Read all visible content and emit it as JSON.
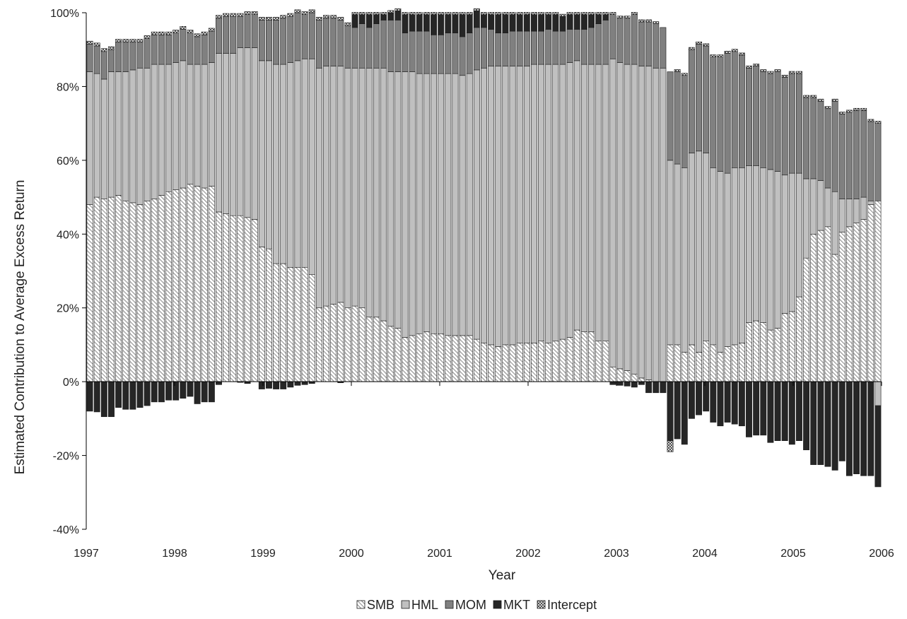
{
  "chart_data": {
    "type": "bar",
    "stacked": true,
    "ylabel": "Estimated Contribution to Average Excess Return",
    "xlabel": "Year",
    "ylim": [
      -0.4,
      1.0
    ],
    "xlim": [
      1997,
      2006
    ],
    "y_ticks": [
      -0.4,
      -0.2,
      0,
      0.2,
      0.4,
      0.6,
      0.8,
      1.0
    ],
    "y_tick_labels": [
      "-40%",
      "-20%",
      "0%",
      "20%",
      "40%",
      "60%",
      "80%",
      "100%"
    ],
    "x_ticks": [
      1997,
      1998,
      1999,
      2000,
      2001,
      2002,
      2003,
      2004,
      2005,
      2006
    ],
    "x_tick_labels": [
      "1997",
      "1998",
      "1999",
      "2000",
      "2001",
      "2002",
      "2003",
      "2004",
      "2005",
      "2006"
    ],
    "legend_position": "bottom",
    "grid": false,
    "series_style": {
      "SMB": {
        "fill": "hatch",
        "color": "#ffffff"
      },
      "HML": {
        "fill": "solid",
        "color": "#c0c0c0"
      },
      "MOM": {
        "fill": "solid",
        "color": "#808080"
      },
      "MKT": {
        "fill": "solid",
        "color": "#262626"
      },
      "Intercept": {
        "fill": "crosshatch",
        "color": "#ffffff"
      }
    },
    "series_names": [
      "SMB",
      "HML",
      "MOM",
      "MKT",
      "Intercept"
    ],
    "series": [
      {
        "name": "SMB",
        "values": [
          0.48,
          0.5,
          0.495,
          0.5,
          0.505,
          0.49,
          0.485,
          0.48,
          0.49,
          0.495,
          0.505,
          0.515,
          0.52,
          0.525,
          0.535,
          0.53,
          0.525,
          0.53,
          0.46,
          0.455,
          0.45,
          0.45,
          0.445,
          0.44,
          0.365,
          0.36,
          0.32,
          0.32,
          0.31,
          0.31,
          0.31,
          0.29,
          0.2,
          0.205,
          0.21,
          0.215,
          0.2,
          0.205,
          0.2,
          0.175,
          0.175,
          0.165,
          0.15,
          0.145,
          0.12,
          0.125,
          0.13,
          0.135,
          0.13,
          0.13,
          0.125,
          0.125,
          0.125,
          0.125,
          0.115,
          0.105,
          0.1,
          0.095,
          0.1,
          0.1,
          0.105,
          0.105,
          0.105,
          0.11,
          0.105,
          0.11,
          0.115,
          0.12,
          0.14,
          0.135,
          0.135,
          0.11,
          0.11,
          0.04,
          0.035,
          0.03,
          0.02,
          0.01,
          0.005,
          0.0,
          0.0,
          0.1,
          0.1,
          0.08,
          0.1,
          0.08,
          0.11,
          0.1,
          0.08,
          0.095,
          0.1,
          0.105,
          0.16,
          0.165,
          0.16,
          0.14,
          0.145,
          0.185,
          0.19,
          0.23,
          0.335,
          0.4,
          0.41,
          0.42,
          0.345,
          0.405,
          0.42,
          0.43,
          0.44,
          0.48,
          0.49
        ]
      },
      {
        "name": "HML",
        "values": [
          0.36,
          0.335,
          0.325,
          0.34,
          0.335,
          0.35,
          0.36,
          0.37,
          0.36,
          0.365,
          0.355,
          0.345,
          0.345,
          0.345,
          0.325,
          0.33,
          0.335,
          0.335,
          0.43,
          0.435,
          0.44,
          0.455,
          0.46,
          0.465,
          0.505,
          0.51,
          0.54,
          0.54,
          0.555,
          0.56,
          0.565,
          0.585,
          0.65,
          0.65,
          0.645,
          0.64,
          0.65,
          0.645,
          0.65,
          0.675,
          0.675,
          0.685,
          0.69,
          0.695,
          0.72,
          0.715,
          0.705,
          0.7,
          0.705,
          0.705,
          0.71,
          0.71,
          0.705,
          0.71,
          0.73,
          0.745,
          0.755,
          0.76,
          0.755,
          0.755,
          0.75,
          0.75,
          0.755,
          0.75,
          0.755,
          0.75,
          0.745,
          0.745,
          0.73,
          0.725,
          0.725,
          0.75,
          0.75,
          0.835,
          0.83,
          0.83,
          0.84,
          0.845,
          0.85,
          0.85,
          0.85,
          0.5,
          0.49,
          0.5,
          0.52,
          0.545,
          0.51,
          0.48,
          0.49,
          0.47,
          0.48,
          0.475,
          0.425,
          0.42,
          0.42,
          0.435,
          0.425,
          0.375,
          0.375,
          0.335,
          0.215,
          0.15,
          0.135,
          0.105,
          0.17,
          0.09,
          0.075,
          0.065,
          0.06,
          0.01,
          -0.065
        ]
      },
      {
        "name": "MOM",
        "values": [
          0.075,
          0.075,
          0.075,
          0.06,
          0.08,
          0.08,
          0.075,
          0.07,
          0.08,
          0.08,
          0.08,
          0.08,
          0.08,
          0.085,
          0.085,
          0.075,
          0.08,
          0.085,
          0.095,
          0.1,
          0.1,
          0.085,
          0.09,
          0.09,
          0.11,
          0.11,
          0.12,
          0.125,
          0.125,
          0.13,
          0.12,
          0.125,
          0.13,
          0.13,
          0.13,
          0.125,
          0.115,
          0.11,
          0.12,
          0.11,
          0.12,
          0.13,
          0.14,
          0.14,
          0.105,
          0.11,
          0.115,
          0.115,
          0.105,
          0.105,
          0.11,
          0.11,
          0.105,
          0.11,
          0.115,
          0.11,
          0.1,
          0.09,
          0.09,
          0.095,
          0.095,
          0.095,
          0.09,
          0.09,
          0.095,
          0.09,
          0.09,
          0.09,
          0.085,
          0.095,
          0.1,
          0.11,
          0.12,
          0.12,
          0.12,
          0.125,
          0.135,
          0.12,
          0.12,
          0.12,
          0.11,
          0.24,
          0.25,
          0.25,
          0.28,
          0.29,
          0.29,
          0.3,
          0.31,
          0.325,
          0.315,
          0.305,
          0.265,
          0.27,
          0.26,
          0.26,
          0.27,
          0.265,
          0.27,
          0.27,
          0.22,
          0.22,
          0.215,
          0.215,
          0.245,
          0.23,
          0.235,
          0.24,
          0.235,
          0.215,
          0.21
        ]
      },
      {
        "name": "MKT",
        "values": [
          -0.08,
          -0.082,
          -0.095,
          -0.095,
          -0.07,
          -0.075,
          -0.075,
          -0.07,
          -0.065,
          -0.055,
          -0.055,
          -0.05,
          -0.05,
          -0.045,
          -0.04,
          -0.06,
          -0.055,
          -0.055,
          -0.008,
          0.0,
          0.0,
          -0.002,
          -0.005,
          0.0,
          -0.02,
          -0.018,
          -0.02,
          -0.02,
          -0.015,
          -0.01,
          -0.008,
          -0.005,
          0.0,
          0.0,
          0.0,
          -0.003,
          0.0,
          0.035,
          0.025,
          0.035,
          0.025,
          0.015,
          0.02,
          0.025,
          0.05,
          0.045,
          0.045,
          0.045,
          0.055,
          0.055,
          0.05,
          0.05,
          0.06,
          0.05,
          0.045,
          0.035,
          0.04,
          0.05,
          0.05,
          0.045,
          0.045,
          0.045,
          0.045,
          0.045,
          0.04,
          0.045,
          0.04,
          0.04,
          0.04,
          0.04,
          0.035,
          0.025,
          0.015,
          -0.008,
          -0.01,
          -0.012,
          -0.015,
          -0.008,
          -0.03,
          -0.03,
          -0.03,
          -0.16,
          -0.155,
          -0.17,
          -0.1,
          -0.09,
          -0.08,
          -0.11,
          -0.12,
          -0.11,
          -0.115,
          -0.12,
          -0.15,
          -0.145,
          -0.145,
          -0.165,
          -0.16,
          -0.16,
          -0.17,
          -0.16,
          -0.185,
          -0.225,
          -0.225,
          -0.23,
          -0.24,
          -0.215,
          -0.255,
          -0.25,
          -0.255,
          -0.255,
          -0.22
        ]
      },
      {
        "name": "Intercept",
        "values": [
          0.008,
          0.008,
          0.008,
          0.008,
          0.008,
          0.008,
          0.008,
          0.008,
          0.008,
          0.008,
          0.008,
          0.008,
          0.008,
          0.008,
          0.008,
          0.008,
          0.008,
          0.008,
          0.008,
          0.008,
          0.008,
          0.008,
          0.008,
          0.008,
          0.008,
          0.008,
          0.008,
          0.008,
          0.008,
          0.008,
          0.008,
          0.008,
          0.008,
          0.008,
          0.008,
          0.008,
          0.008,
          0.006,
          0.006,
          0.006,
          0.006,
          0.006,
          0.006,
          0.006,
          0.006,
          0.006,
          0.006,
          0.006,
          0.006,
          0.006,
          0.006,
          0.006,
          0.006,
          0.006,
          0.006,
          0.006,
          0.006,
          0.006,
          0.006,
          0.006,
          0.006,
          0.006,
          0.006,
          0.006,
          0.006,
          0.006,
          0.006,
          0.006,
          0.006,
          0.006,
          0.006,
          0.006,
          0.006,
          0.006,
          0.006,
          0.006,
          0.006,
          0.006,
          0.006,
          0.006,
          0.0,
          -0.03,
          0.006,
          0.006,
          0.006,
          0.006,
          0.006,
          0.006,
          0.006,
          0.006,
          0.006,
          0.006,
          0.006,
          0.006,
          0.006,
          0.006,
          0.006,
          0.006,
          0.006,
          0.006,
          0.006,
          0.006,
          0.006,
          0.006,
          0.006,
          0.006,
          0.006,
          0.006,
          0.006,
          0.006,
          0.006
        ]
      }
    ]
  }
}
